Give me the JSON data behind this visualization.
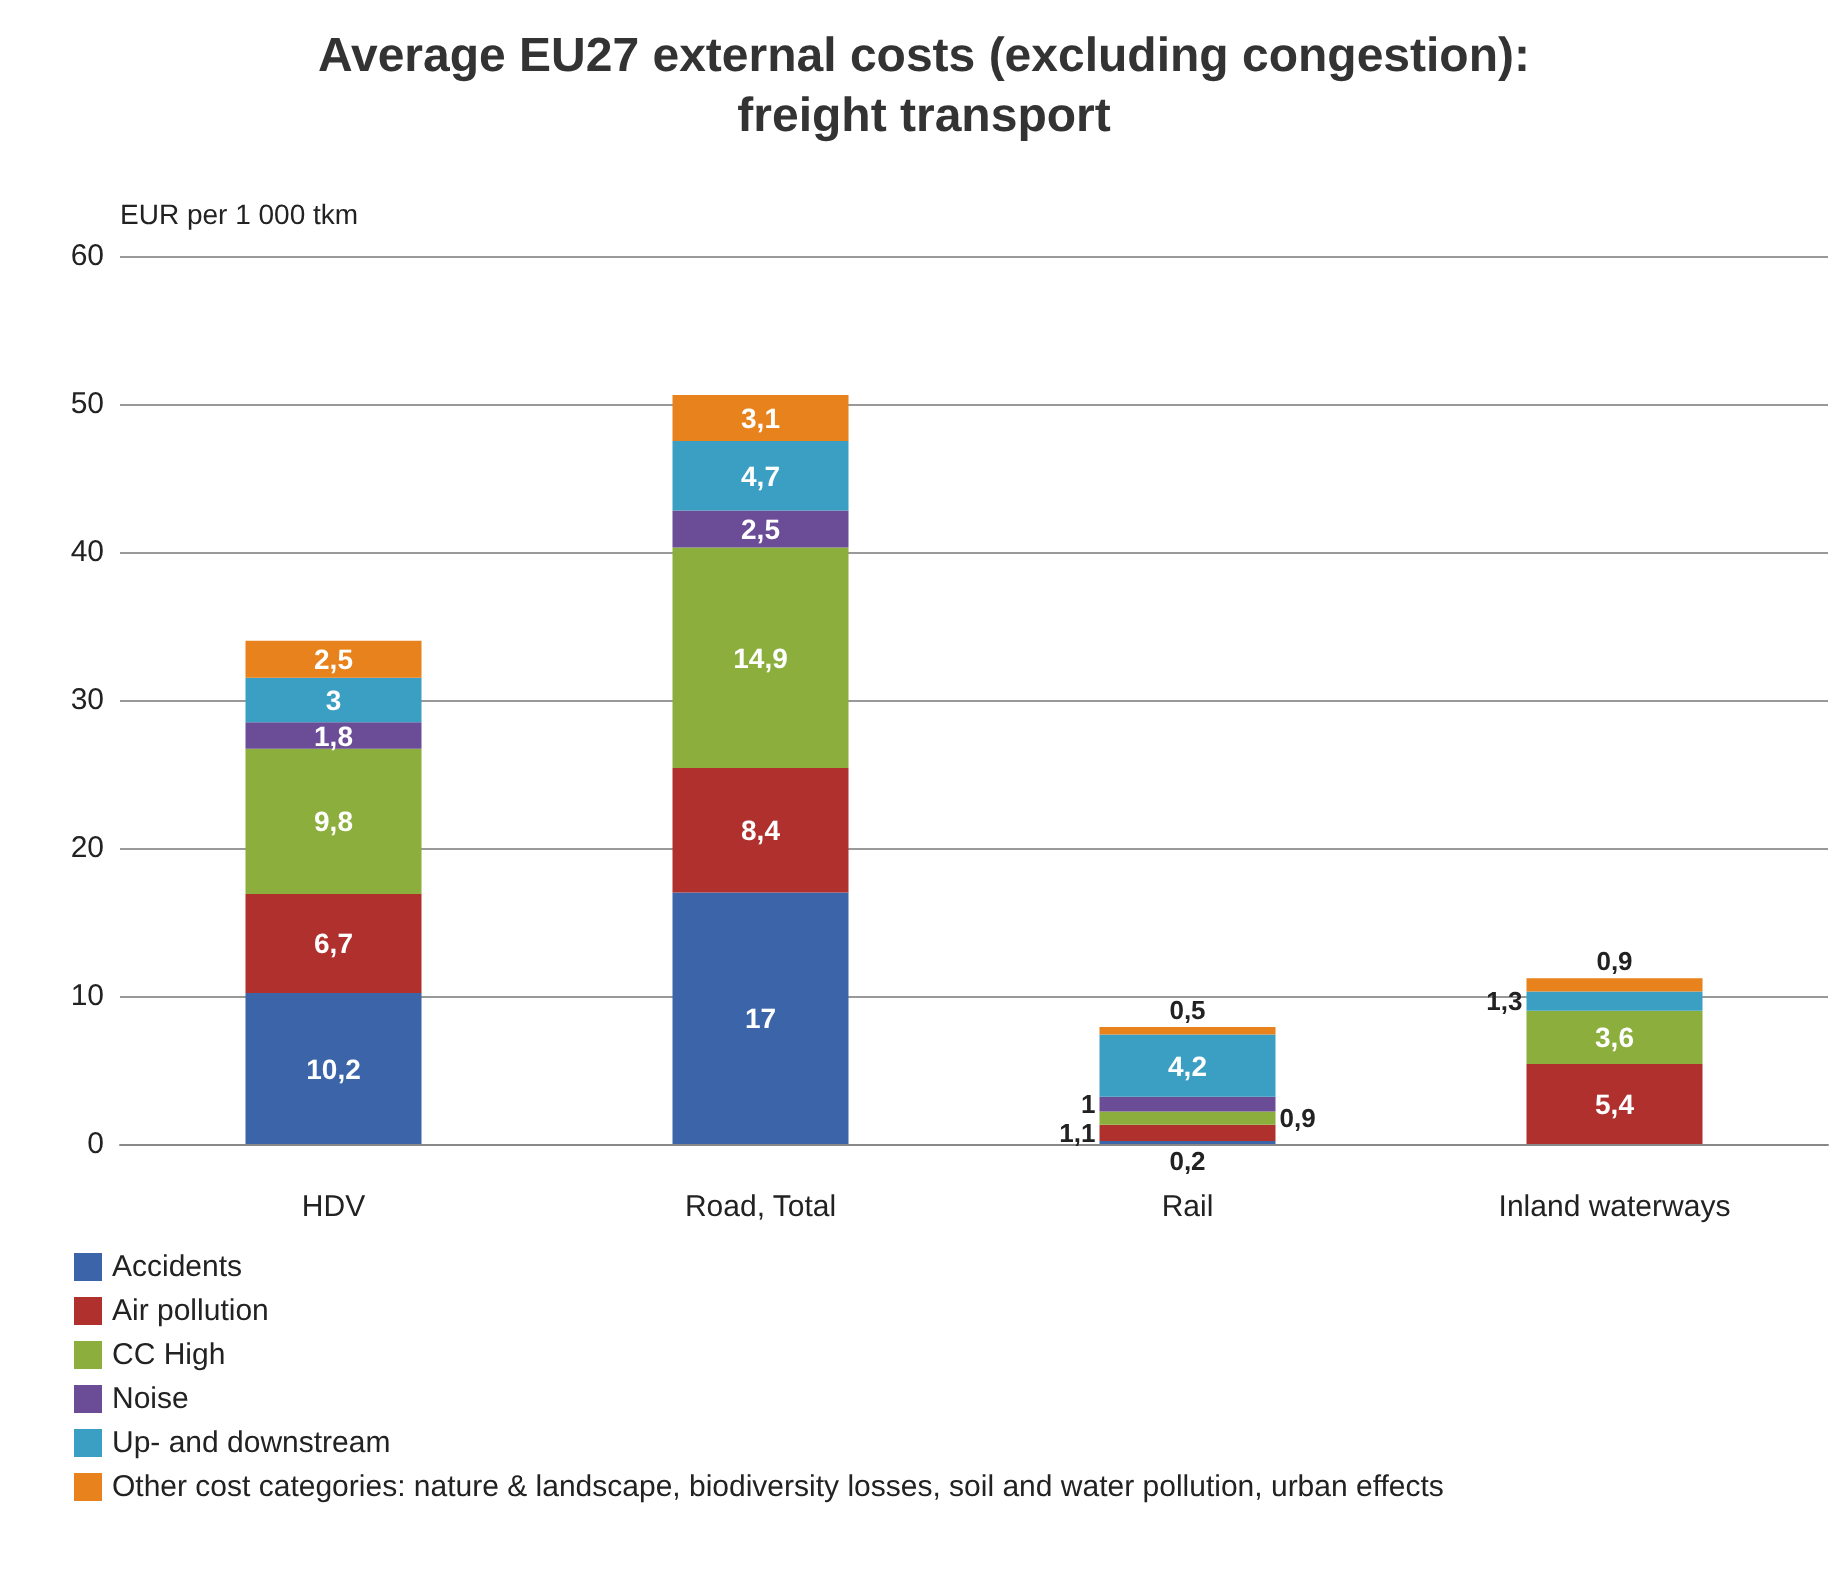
{
  "chart_data": {
    "type": "bar",
    "title": "Average EU27 external costs (excluding congestion):\nfreight transport",
    "ylabel": "EUR per 1 000 tkm",
    "categories": [
      "HDV",
      "Road, Total",
      "Rail",
      "Inland waterways"
    ],
    "stacked": true,
    "ylim": [
      0,
      60
    ],
    "yticks": [
      0,
      10,
      20,
      30,
      40,
      50,
      60
    ],
    "grid": "y",
    "legend": "bottom left",
    "series": [
      {
        "name": "Accidents",
        "color": "#3b65a8",
        "values": [
          10.2,
          17,
          0.2,
          null
        ],
        "value_labels": [
          "10,2",
          "17",
          "0,2",
          null
        ]
      },
      {
        "name": "Air pollution",
        "color": "#b0302e",
        "values": [
          6.7,
          8.4,
          1.1,
          5.4
        ],
        "value_labels": [
          "6,7",
          "8,4",
          "1,1",
          "5,4"
        ]
      },
      {
        "name": "CC High",
        "color": "#8bae3c",
        "values": [
          9.8,
          14.9,
          0.9,
          3.6
        ],
        "value_labels": [
          "9,8",
          "14,9",
          "0,9",
          "3,6"
        ]
      },
      {
        "name": "Noise",
        "color": "#6b4c96",
        "values": [
          1.8,
          2.5,
          1,
          null
        ],
        "value_labels": [
          "1,8",
          "2,5",
          "1",
          null
        ]
      },
      {
        "name": "Up- and downstream",
        "color": "#3a9fc2",
        "values": [
          3,
          4.7,
          4.2,
          1.3
        ],
        "value_labels": [
          "3",
          "4,7",
          "4,2",
          "1,3"
        ]
      },
      {
        "name": "Other cost categories: nature & landscape, biodiversity losses, soil and water pollution, urban effects",
        "color": "#e8821c",
        "values": [
          2.5,
          3.1,
          0.5,
          0.9
        ],
        "value_labels": [
          "2,5",
          "3,1",
          "0,5",
          "0,9"
        ]
      }
    ]
  }
}
